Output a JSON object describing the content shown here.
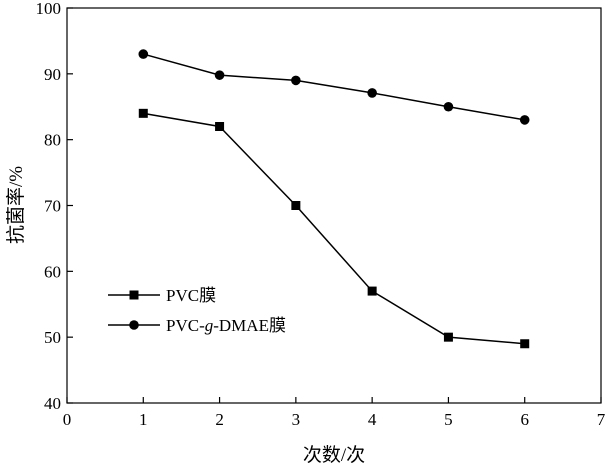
{
  "chart_data": {
    "type": "line",
    "title": "",
    "xlabel": "次数/次",
    "ylabel": "抗菌率/%",
    "xlim": [
      0,
      7
    ],
    "ylim": [
      40,
      100
    ],
    "xticks": [
      0,
      1,
      2,
      3,
      4,
      5,
      6,
      7
    ],
    "yticks": [
      40,
      50,
      60,
      70,
      80,
      90,
      100
    ],
    "x": [
      1,
      2,
      3,
      4,
      5,
      6
    ],
    "series": [
      {
        "name": "PVC膜",
        "marker": "square",
        "values": [
          84,
          82,
          70,
          57,
          50,
          49
        ]
      },
      {
        "name_parts": [
          "PVC-",
          "g",
          "-DMAE膜"
        ],
        "name": "PVC-g-DMAE膜",
        "marker": "circle",
        "values": [
          93,
          89.8,
          89,
          87.1,
          85,
          83
        ]
      }
    ],
    "grid": false,
    "legend_position": "lower-left"
  },
  "colors": {
    "line": "#000000",
    "background": "#ffffff"
  }
}
